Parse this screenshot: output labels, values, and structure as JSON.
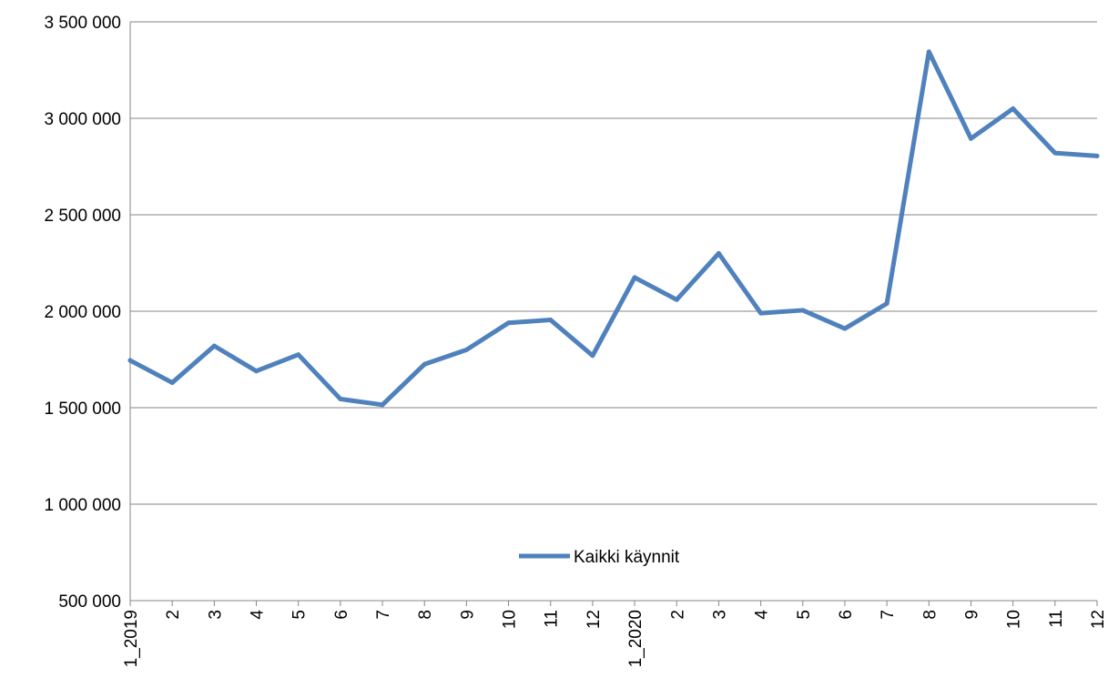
{
  "chart_data": {
    "type": "line",
    "title": "",
    "xlabel": "",
    "ylabel": "",
    "ylim": [
      500000,
      3500000
    ],
    "yticks": [
      500000,
      1000000,
      1500000,
      2000000,
      2500000,
      3000000,
      3500000
    ],
    "ytick_labels": [
      "500 000",
      "1 000 000",
      "1 500 000",
      "2 000 000",
      "2 500 000",
      "3 000 000",
      "3 500 000"
    ],
    "grid": true,
    "legend_position": "inside-bottom-center",
    "colors": {
      "series": "#4f81bd",
      "grid": "#868686",
      "axis": "#868686"
    },
    "categories": [
      "1_2019",
      "2",
      "3",
      "4",
      "5",
      "6",
      "7",
      "8",
      "9",
      "10",
      "11",
      "12",
      "1_2020",
      "2",
      "3",
      "4",
      "5",
      "6",
      "7",
      "8",
      "9",
      "10",
      "11",
      "12"
    ],
    "series": [
      {
        "name": "Kaikki käynnit",
        "values": [
          1745000,
          1630000,
          1820000,
          1690000,
          1775000,
          1545000,
          1515000,
          1725000,
          1800000,
          1940000,
          1955000,
          1770000,
          2175000,
          2060000,
          2300000,
          1990000,
          2005000,
          1910000,
          2040000,
          3345000,
          2895000,
          3050000,
          2820000,
          2805000
        ]
      }
    ]
  }
}
